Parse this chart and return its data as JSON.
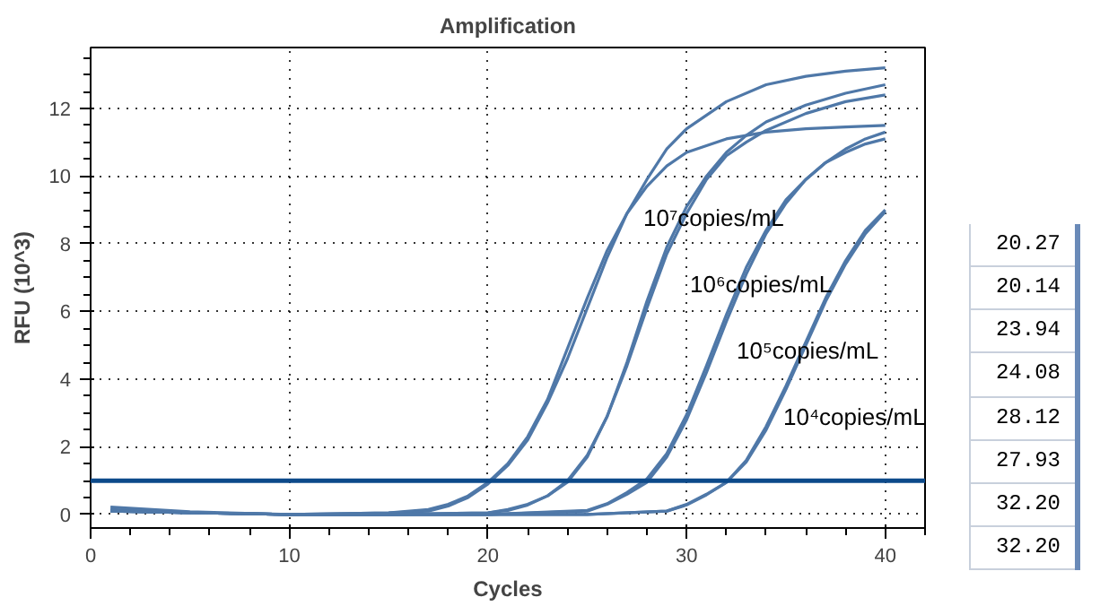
{
  "chart_data": {
    "type": "line",
    "title": "Amplification",
    "xlabel": "Cycles",
    "ylabel": "RFU (10^3)",
    "xlim": [
      0,
      42
    ],
    "ylim": [
      -0.4,
      13.8
    ],
    "xticks": [
      0,
      10,
      20,
      30,
      40
    ],
    "yticks": [
      0,
      2,
      4,
      6,
      8,
      10,
      12
    ],
    "grid": true,
    "marker": "none",
    "line_style": "solid",
    "series": [
      {
        "color": "#4f78a8",
        "x": [
          1,
          5,
          10,
          15,
          17,
          18,
          19,
          20,
          21,
          22,
          23,
          24,
          25,
          26,
          27,
          28,
          29,
          30,
          32,
          34,
          36,
          38,
          40
        ],
        "values": [
          0.1,
          0.05,
          0,
          0.05,
          0.1,
          0.25,
          0.5,
          0.9,
          1.45,
          2.2,
          3.3,
          4.6,
          6.1,
          7.6,
          8.9,
          9.9,
          10.8,
          11.4,
          12.2,
          12.7,
          12.95,
          13.1,
          13.2
        ]
      },
      {
        "color": "#4f78a8",
        "x": [
          1,
          5,
          10,
          15,
          17,
          18,
          19,
          20,
          21,
          22,
          23,
          24,
          25,
          26,
          27,
          28,
          29,
          30,
          32,
          34,
          36,
          38,
          40
        ],
        "values": [
          0.15,
          0.05,
          0,
          0.05,
          0.15,
          0.3,
          0.55,
          0.95,
          1.5,
          2.3,
          3.4,
          4.9,
          6.4,
          7.8,
          8.9,
          9.7,
          10.3,
          10.7,
          11.1,
          11.3,
          11.4,
          11.45,
          11.5
        ]
      },
      {
        "color": "#4f78a8",
        "x": [
          1,
          5,
          10,
          15,
          20,
          21,
          22,
          23,
          24,
          25,
          26,
          27,
          28,
          29,
          30,
          31,
          32,
          33,
          34,
          36,
          38,
          40
        ],
        "values": [
          0.1,
          0.05,
          0,
          0,
          0.05,
          0.15,
          0.3,
          0.55,
          0.95,
          1.7,
          2.9,
          4.5,
          6.3,
          7.9,
          9.1,
          10.0,
          10.7,
          11.2,
          11.6,
          12.1,
          12.45,
          12.7
        ]
      },
      {
        "color": "#4f78a8",
        "x": [
          1,
          5,
          10,
          15,
          20,
          21,
          22,
          23,
          24,
          25,
          26,
          27,
          28,
          29,
          30,
          31,
          32,
          33,
          34,
          36,
          38,
          40
        ],
        "values": [
          0.12,
          0.05,
          0,
          0,
          0.05,
          0.12,
          0.28,
          0.55,
          1.0,
          1.75,
          2.9,
          4.4,
          6.1,
          7.7,
          8.9,
          9.9,
          10.6,
          11.0,
          11.35,
          11.85,
          12.2,
          12.4
        ]
      },
      {
        "color": "#4f78a8",
        "x": [
          1,
          5,
          10,
          15,
          20,
          25,
          26,
          27,
          28,
          29,
          30,
          31,
          32,
          33,
          34,
          35,
          36,
          37,
          38,
          39,
          40
        ],
        "values": [
          0.1,
          0.05,
          0,
          0,
          0,
          0.1,
          0.3,
          0.6,
          0.95,
          1.7,
          2.8,
          4.2,
          5.7,
          7.1,
          8.3,
          9.2,
          9.9,
          10.4,
          10.8,
          11.1,
          11.3
        ]
      },
      {
        "color": "#4f78a8",
        "x": [
          1,
          5,
          10,
          15,
          20,
          25,
          26,
          27,
          28,
          29,
          30,
          31,
          32,
          33,
          34,
          35,
          36,
          37,
          38,
          39,
          40
        ],
        "values": [
          0.12,
          0.05,
          0,
          0,
          0,
          0.12,
          0.32,
          0.65,
          1.05,
          1.8,
          2.95,
          4.4,
          5.9,
          7.3,
          8.4,
          9.3,
          9.9,
          10.4,
          10.7,
          10.95,
          11.1
        ]
      },
      {
        "color": "#4f78a8",
        "x": [
          1,
          5,
          10,
          15,
          20,
          25,
          29,
          30,
          31,
          32,
          33,
          34,
          35,
          36,
          37,
          38,
          39,
          40
        ],
        "values": [
          0.1,
          0.05,
          0,
          0,
          0,
          0,
          0.1,
          0.3,
          0.6,
          0.95,
          1.6,
          2.6,
          3.8,
          5.1,
          6.4,
          7.5,
          8.4,
          9.0
        ]
      },
      {
        "color": "#4f78a8",
        "x": [
          1,
          5,
          10,
          15,
          20,
          25,
          29,
          30,
          31,
          32,
          33,
          34,
          35,
          36,
          37,
          38,
          39,
          40
        ],
        "values": [
          0.22,
          0.08,
          0,
          0,
          0,
          0,
          0.1,
          0.28,
          0.58,
          0.95,
          1.55,
          2.5,
          3.7,
          5.0,
          6.3,
          7.4,
          8.3,
          8.95
        ]
      }
    ],
    "ref_lines": [
      {
        "axis": "y",
        "value": 1,
        "color": "#0d4a8a",
        "line_style": "solid"
      }
    ],
    "annotations": [
      "10⁷copies/mL",
      "10⁶copies/mL",
      "10⁵copies/mL",
      "10⁴copies/mL",
      "20.27",
      "20.14",
      "23.94",
      "24.08",
      "28.12",
      "27.93",
      "32.20",
      "32.20"
    ]
  }
}
